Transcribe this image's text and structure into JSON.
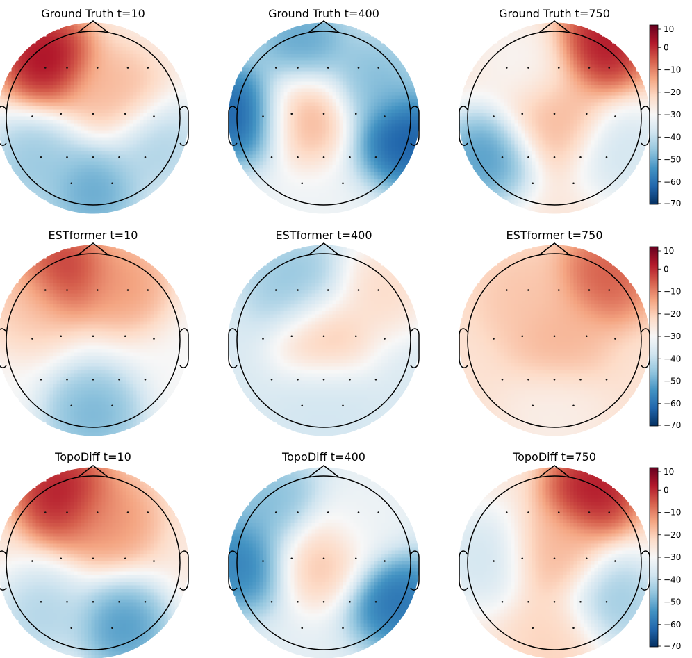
{
  "chart_data": {
    "type": "heatmap",
    "subtype": "eeg-topomap-grid",
    "colormap": "RdBu_r",
    "rows": [
      {
        "model": "Ground Truth",
        "panels": [
          {
            "title": "Ground Truth t=10",
            "t": 10,
            "blobs": [
              {
                "x": -0.55,
                "y": 0.7,
                "v": 10
              },
              {
                "x": 0.25,
                "y": 0.3,
                "v": -15
              },
              {
                "x": 0.0,
                "y": -0.85,
                "v": -55
              },
              {
                "x": -0.7,
                "y": -0.5,
                "v": -48
              },
              {
                "x": 0.75,
                "y": -0.35,
                "v": -45
              }
            ],
            "base": -28
          },
          {
            "title": "Ground Truth t=400",
            "t": 400,
            "blobs": [
              {
                "x": -0.25,
                "y": 0.05,
                "v": -12
              },
              {
                "x": -0.95,
                "y": 0.05,
                "v": -70
              },
              {
                "x": 0.95,
                "y": -0.25,
                "v": -70
              },
              {
                "x": -0.25,
                "y": 0.85,
                "v": -55
              },
              {
                "x": 0.6,
                "y": 0.45,
                "v": -50
              }
            ],
            "base": -32
          },
          {
            "title": "Ground Truth t=750",
            "t": 750,
            "blobs": [
              {
                "x": 0.55,
                "y": 0.85,
                "v": 8
              },
              {
                "x": 0.0,
                "y": 0.0,
                "v": -15
              },
              {
                "x": -0.8,
                "y": -0.45,
                "v": -58
              },
              {
                "x": 0.8,
                "y": -0.4,
                "v": -40
              },
              {
                "x": -0.3,
                "y": 0.6,
                "v": -30
              }
            ],
            "base": -25
          }
        ]
      },
      {
        "model": "ESTformer",
        "panels": [
          {
            "title": "ESTformer t=10",
            "t": 10,
            "blobs": [
              {
                "x": -0.35,
                "y": 0.8,
                "v": 5
              },
              {
                "x": 0.35,
                "y": 0.65,
                "v": -10
              },
              {
                "x": 0.0,
                "y": -0.85,
                "v": -52
              },
              {
                "x": -0.75,
                "y": 0.4,
                "v": -18
              }
            ],
            "base": -30
          },
          {
            "title": "ESTformer t=400",
            "t": 400,
            "blobs": [
              {
                "x": 0.0,
                "y": 0.05,
                "v": -15
              },
              {
                "x": -0.3,
                "y": 0.6,
                "v": -48
              },
              {
                "x": 0.7,
                "y": 0.6,
                "v": -20
              },
              {
                "x": 0.0,
                "y": -0.7,
                "v": -38
              }
            ],
            "base": -36
          },
          {
            "title": "ESTformer t=750",
            "t": 750,
            "blobs": [
              {
                "x": 0.05,
                "y": 0.0,
                "v": -15
              },
              {
                "x": 0.6,
                "y": 0.75,
                "v": -2
              },
              {
                "x": -0.35,
                "y": 0.5,
                "v": -18
              },
              {
                "x": 0.0,
                "y": -0.8,
                "v": -28
              }
            ],
            "base": -24
          }
        ]
      },
      {
        "model": "TopoDiff",
        "panels": [
          {
            "title": "TopoDiff t=10",
            "t": 10,
            "blobs": [
              {
                "x": -0.35,
                "y": 0.8,
                "v": 8
              },
              {
                "x": 0.2,
                "y": 0.5,
                "v": -10
              },
              {
                "x": 0.35,
                "y": -0.75,
                "v": -58
              },
              {
                "x": -0.6,
                "y": -0.6,
                "v": -45
              }
            ],
            "base": -26
          },
          {
            "title": "TopoDiff t=400",
            "t": 400,
            "blobs": [
              {
                "x": -0.05,
                "y": 0.05,
                "v": -15
              },
              {
                "x": -0.95,
                "y": 0.0,
                "v": -62
              },
              {
                "x": 0.85,
                "y": -0.45,
                "v": -65
              },
              {
                "x": -0.55,
                "y": 0.65,
                "v": -50
              },
              {
                "x": 0.45,
                "y": 0.5,
                "v": -32
              }
            ],
            "base": -34
          },
          {
            "title": "TopoDiff t=750",
            "t": 750,
            "blobs": [
              {
                "x": 0.45,
                "y": 0.85,
                "v": 8
              },
              {
                "x": 0.0,
                "y": 0.1,
                "v": -15
              },
              {
                "x": 0.7,
                "y": -0.45,
                "v": -48
              },
              {
                "x": -0.8,
                "y": 0.05,
                "v": -40
              },
              {
                "x": 0.0,
                "y": -0.9,
                "v": -20
              }
            ],
            "base": -26
          }
        ]
      }
    ],
    "colorbar": {
      "ticks": [
        "10",
        "0",
        "−10",
        "−20",
        "−30",
        "−40",
        "−50",
        "−60",
        "−70"
      ],
      "vmin": -70,
      "vmax": 10
    },
    "electrodes": [
      {
        "x": -0.55,
        "y": 0.58
      },
      {
        "x": -0.3,
        "y": 0.58
      },
      {
        "x": 0.05,
        "y": 0.58
      },
      {
        "x": 0.4,
        "y": 0.58
      },
      {
        "x": 0.63,
        "y": 0.58
      },
      {
        "x": -0.7,
        "y": 0.02
      },
      {
        "x": -0.37,
        "y": 0.05
      },
      {
        "x": 0.0,
        "y": 0.05
      },
      {
        "x": 0.37,
        "y": 0.05
      },
      {
        "x": 0.7,
        "y": 0.02
      },
      {
        "x": -0.6,
        "y": -0.45
      },
      {
        "x": -0.3,
        "y": -0.45
      },
      {
        "x": 0.0,
        "y": -0.45
      },
      {
        "x": 0.3,
        "y": -0.45
      },
      {
        "x": 0.6,
        "y": -0.45
      },
      {
        "x": -0.25,
        "y": -0.75
      },
      {
        "x": 0.22,
        "y": -0.75
      }
    ]
  }
}
